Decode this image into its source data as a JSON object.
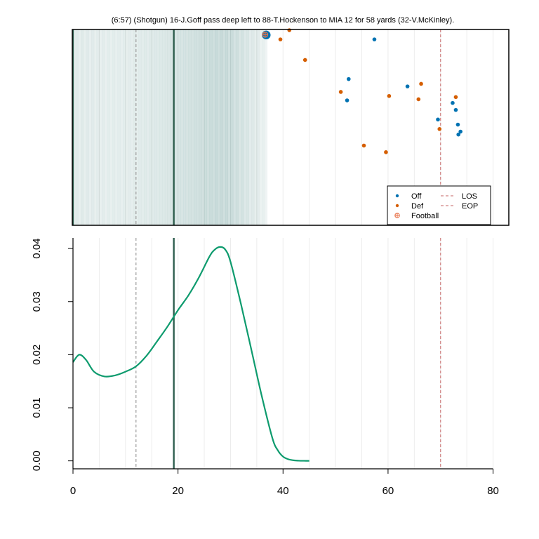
{
  "chart_data": [
    {
      "type": "scatter",
      "title": "(6:57) (Shotgun) 16-J.Goff pass deep left to 88-T.Hockenson to MIA 12 for 58 yards (32-V.McKinley).",
      "xlim": [
        0,
        83
      ],
      "ylim": [
        53.3,
        0
      ],
      "grid": true,
      "legend": {
        "placement": "bottom-right",
        "entries": [
          {
            "label": "Off",
            "kind": "point",
            "color": "#0072B2"
          },
          {
            "label": "Def",
            "kind": "point",
            "color": "#D55E00"
          },
          {
            "label": "Football",
            "kind": "football",
            "color": "#E8734A"
          },
          {
            "label": "LOS",
            "kind": "dashed-line",
            "color": "#D08080"
          },
          {
            "label": "EOP",
            "kind": "dashed-line",
            "color": "#D08080"
          }
        ]
      },
      "los_x": 70,
      "eop_x": 12,
      "target_x": 19.2,
      "football": {
        "x": 36.6,
        "y": 1.4
      },
      "highlighted_player": {
        "team": "Off",
        "x": 36.8,
        "y": 1.5
      },
      "series": [
        {
          "name": "Off",
          "color": "#0072B2",
          "points": [
            {
              "x": 36.8,
              "y": 1.5
            },
            {
              "x": 57.4,
              "y": 2.7
            },
            {
              "x": 52.5,
              "y": 13.5
            },
            {
              "x": 52.2,
              "y": 19.3
            },
            {
              "x": 63.7,
              "y": 15.5
            },
            {
              "x": 72.3,
              "y": 20.0
            },
            {
              "x": 72.9,
              "y": 21.9
            },
            {
              "x": 69.5,
              "y": 24.5
            },
            {
              "x": 73.3,
              "y": 25.9
            },
            {
              "x": 73.8,
              "y": 27.8
            },
            {
              "x": 73.4,
              "y": 28.6
            }
          ]
        },
        {
          "name": "Def",
          "color": "#D55E00",
          "points": [
            {
              "x": 41.2,
              "y": 0.2
            },
            {
              "x": 39.5,
              "y": 2.7
            },
            {
              "x": 44.2,
              "y": 8.3
            },
            {
              "x": 51.0,
              "y": 17.0
            },
            {
              "x": 60.2,
              "y": 18.1
            },
            {
              "x": 66.3,
              "y": 14.8
            },
            {
              "x": 65.8,
              "y": 19.0
            },
            {
              "x": 72.9,
              "y": 18.4
            },
            {
              "x": 69.8,
              "y": 27.1
            },
            {
              "x": 55.4,
              "y": 31.6
            },
            {
              "x": 59.6,
              "y": 33.4
            }
          ]
        }
      ]
    },
    {
      "type": "line",
      "xlim": [
        0,
        83
      ],
      "ylim": [
        -0.0015,
        0.042
      ],
      "x_ticks": [
        0,
        20,
        40,
        60,
        80
      ],
      "y_ticks": [
        0.0,
        0.01,
        0.02,
        0.03,
        0.04
      ],
      "x_tick_labels": [
        "0",
        "20",
        "40",
        "60",
        "80"
      ],
      "y_tick_labels": [
        "0.00",
        "0.01",
        "0.02",
        "0.03",
        "0.04"
      ],
      "grid": true,
      "los_x": 70,
      "eop_x": 12,
      "target_x": 19.2,
      "line_color": "#0E9B6E",
      "series": [
        {
          "x": [
            0,
            1.2,
            2.5,
            4,
            6,
            8,
            10,
            12,
            14,
            16,
            18,
            20,
            22,
            24,
            26,
            27,
            28,
            29,
            30,
            32,
            34,
            36,
            38,
            39,
            40,
            41,
            42,
            43,
            44,
            45
          ],
          "values": [
            0.0186,
            0.02,
            0.019,
            0.0168,
            0.0159,
            0.0161,
            0.0168,
            0.0178,
            0.0198,
            0.0225,
            0.0253,
            0.0284,
            0.0312,
            0.0346,
            0.0385,
            0.0398,
            0.0403,
            0.0398,
            0.0375,
            0.0295,
            0.0208,
            0.012,
            0.0042,
            0.002,
            0.0008,
            0.0003,
            0.0001,
            3e-05,
            1e-05,
            0.0
          ]
        }
      ]
    }
  ]
}
